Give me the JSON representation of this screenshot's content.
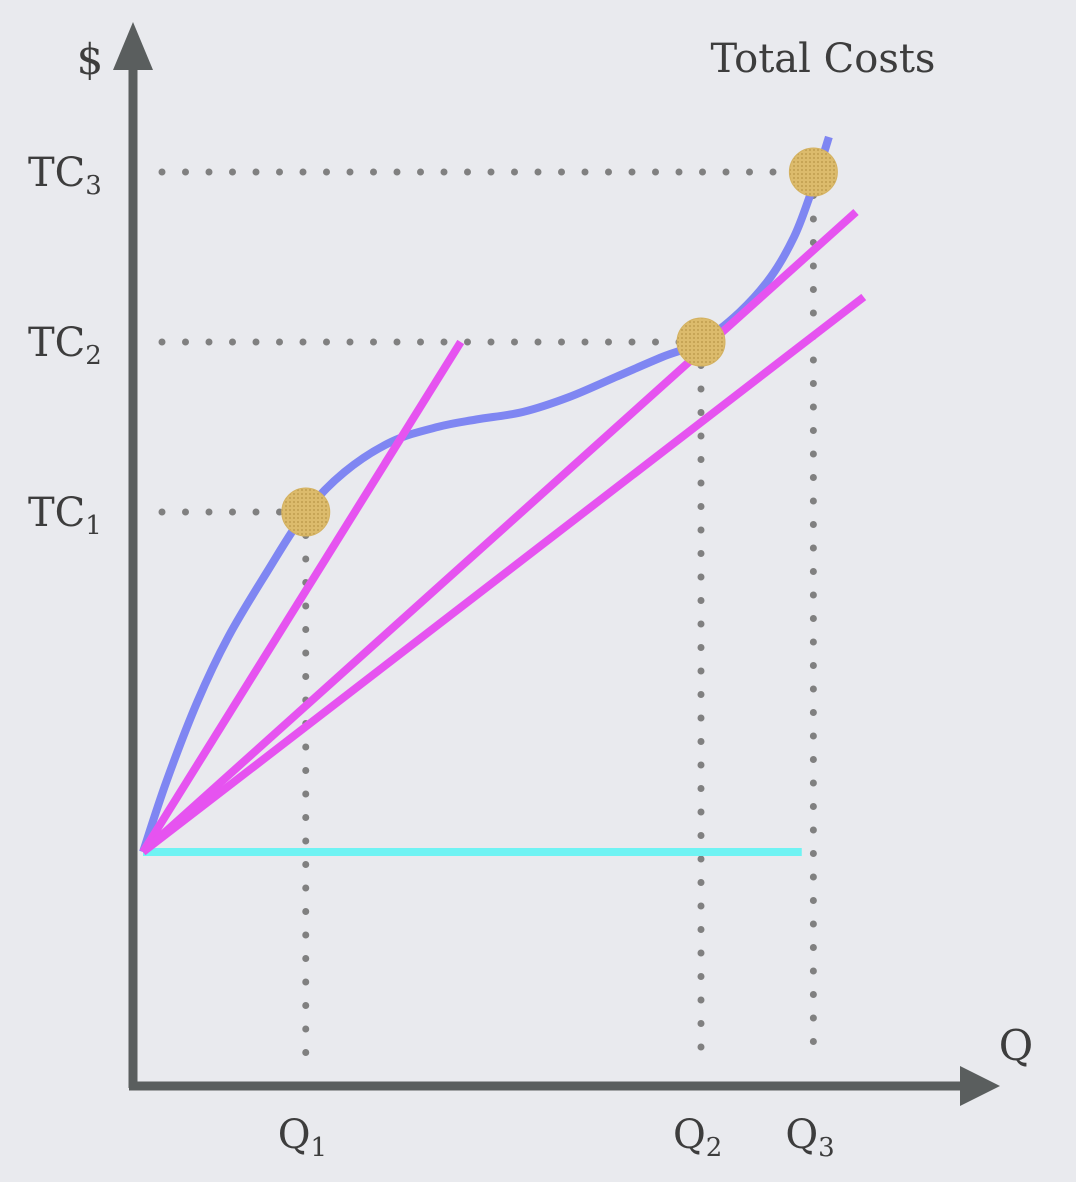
{
  "chart_data": {
    "type": "line",
    "title": "Total Costs",
    "ylabel": "$",
    "xlabel": "Q",
    "y_tick_labels": [
      {
        "base": "TC",
        "sub": "1",
        "value": 6.8
      },
      {
        "base": "TC",
        "sub": "2",
        "value": 10.2
      },
      {
        "base": "TC",
        "sub": "3",
        "value": 13.6
      }
    ],
    "x_tick_labels": [
      {
        "base": "Q",
        "sub": "1",
        "value": 2.1
      },
      {
        "base": "Q",
        "sub": "2",
        "value": 7.2
      },
      {
        "base": "Q",
        "sub": "3",
        "value": 8.65
      }
    ],
    "xlim": [
      0,
      9.5
    ],
    "ylim": [
      -0.8,
      14.5
    ],
    "series": [
      {
        "role": "total-cost-curve",
        "color": "#7f86f2",
        "x": [
          0,
          0.3,
          0.7,
          1.1,
          1.6,
          2.1,
          2.6,
          3.2,
          3.8,
          4.3,
          4.9,
          5.5,
          6.1,
          6.7,
          7.2,
          7.7,
          8.1,
          8.4,
          8.6,
          8.75,
          8.85
        ],
        "y": [
          0,
          1.4,
          3.0,
          4.3,
          5.6,
          6.8,
          7.6,
          8.2,
          8.5,
          8.65,
          8.8,
          9.1,
          9.5,
          9.9,
          10.2,
          10.8,
          11.5,
          12.3,
          13.1,
          13.8,
          14.3
        ]
      },
      {
        "role": "fixed-cost-line",
        "color": "#6ff3f3",
        "x": [
          0,
          8.5
        ],
        "y": [
          0,
          0
        ]
      },
      {
        "role": "ray-to-q1",
        "color": "#e653f0",
        "x": [
          0,
          4.1
        ],
        "y": [
          0,
          10.2
        ]
      },
      {
        "role": "ray-to-q2",
        "color": "#e653f0",
        "x": [
          0,
          9.3
        ],
        "y": [
          0,
          11.1
        ]
      },
      {
        "role": "ray-to-q3",
        "color": "#e653f0",
        "x": [
          0,
          9.2
        ],
        "y": [
          0,
          12.8
        ]
      }
    ],
    "points": [
      {
        "x": 2.1,
        "y": 6.8,
        "color": "#d9b86a"
      },
      {
        "x": 7.2,
        "y": 10.2,
        "color": "#d9b86a"
      },
      {
        "x": 8.65,
        "y": 13.6,
        "color": "#d9b86a"
      }
    ],
    "grid": false,
    "legend": "none"
  }
}
